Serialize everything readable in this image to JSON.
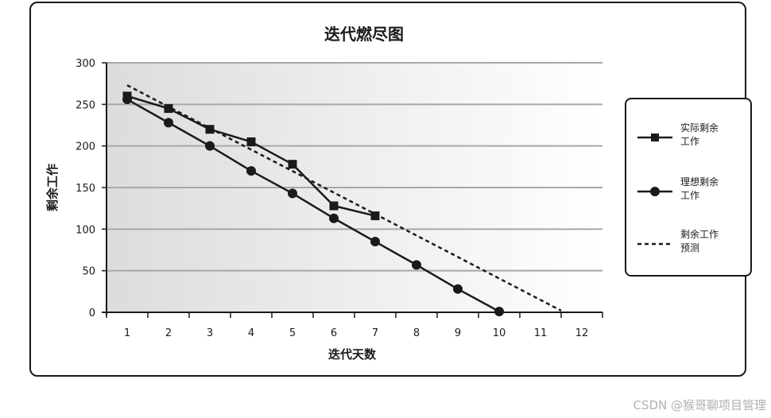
{
  "chart_data": {
    "type": "line",
    "title": "迭代燃尽图",
    "xlabel": "迭代天数",
    "ylabel": "剩余工作",
    "x_ticks": [
      1,
      2,
      3,
      4,
      5,
      6,
      7,
      8,
      9,
      10,
      11,
      12
    ],
    "y_ticks": [
      0,
      50,
      100,
      150,
      200,
      250,
      300
    ],
    "xlim": [
      0.5,
      12.5
    ],
    "ylim": [
      0,
      300
    ],
    "grid": true,
    "legend_position": "right",
    "series": [
      {
        "name": "实际剩余\n工作",
        "marker": "square",
        "style": "solid",
        "x": [
          1,
          2,
          3,
          4,
          5,
          6,
          7
        ],
        "y": [
          260,
          245,
          220,
          205,
          178,
          128,
          116
        ]
      },
      {
        "name": "理想剩余\n工作",
        "marker": "circle",
        "style": "solid",
        "x": [
          1,
          2,
          3,
          4,
          5,
          6,
          7,
          8,
          9,
          10
        ],
        "y": [
          256,
          228,
          200,
          170,
          143,
          113,
          85,
          57,
          28,
          1
        ]
      },
      {
        "name": "剩余工作\n预测",
        "marker": "none",
        "style": "dashed",
        "x": [
          1,
          11.5
        ],
        "y": [
          273,
          2
        ]
      }
    ],
    "colors": {
      "line": "#1a1a1a",
      "grid": "#a8a8a8",
      "plot_bg_left": "#dcdcdc",
      "plot_bg_right": "#ffffff"
    }
  },
  "watermark": "CSDN @猴哥聊项目管理"
}
